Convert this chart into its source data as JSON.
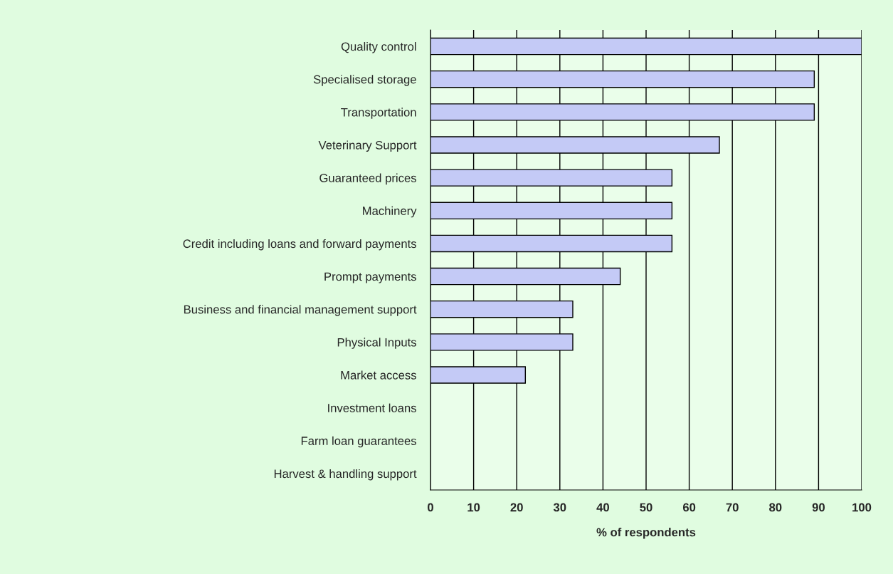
{
  "chart_data": {
    "type": "bar",
    "orientation": "horizontal",
    "xlabel": "% of respondents",
    "categories": [
      "Quality control",
      "Specialised storage",
      "Transportation",
      "Veterinary Support",
      "Guaranteed prices",
      "Machinery",
      "Credit including loans and forward payments",
      "Prompt payments",
      "Business and financial management support",
      "Physical Inputs",
      "Market access",
      "Investment loans",
      "Farm loan guarantees",
      "Harvest & handling support"
    ],
    "values": [
      100,
      89,
      89,
      67,
      56,
      56,
      56,
      44,
      33,
      33,
      22,
      0,
      0,
      0
    ],
    "color": "#c4caf6",
    "xlim": [
      0,
      100
    ],
    "xticks": [
      0,
      10,
      20,
      30,
      40,
      50,
      60,
      70,
      80,
      90,
      100
    ],
    "grid": "x",
    "legend": false
  }
}
